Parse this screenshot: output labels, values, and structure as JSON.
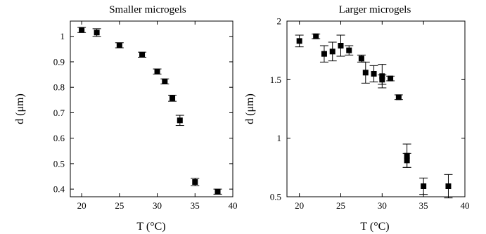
{
  "chart_data": [
    {
      "type": "scatter",
      "title": "Smaller microgels",
      "xlabel": "T (°C)",
      "ylabel": "d (μm)",
      "xlim": [
        18.5,
        40
      ],
      "ylim": [
        0.37,
        1.06
      ],
      "xticks": [
        20,
        25,
        30,
        35,
        40
      ],
      "yticks": [
        0.4,
        0.5,
        0.6,
        0.7,
        0.8,
        0.9,
        1
      ],
      "grid": false,
      "series": [
        {
          "marker": "square",
          "color": "#000000",
          "points": [
            {
              "x": 20,
              "y": 1.025,
              "err": 0.01
            },
            {
              "x": 22,
              "y": 1.015,
              "err": 0.015
            },
            {
              "x": 25,
              "y": 0.965,
              "err": 0.01
            },
            {
              "x": 28,
              "y": 0.928,
              "err": 0.01
            },
            {
              "x": 30,
              "y": 0.862,
              "err": 0.01
            },
            {
              "x": 31,
              "y": 0.823,
              "err": 0.01
            },
            {
              "x": 32,
              "y": 0.757,
              "err": 0.012
            },
            {
              "x": 33,
              "y": 0.67,
              "err": 0.02
            },
            {
              "x": 35,
              "y": 0.428,
              "err": 0.015
            },
            {
              "x": 38,
              "y": 0.39,
              "err": 0.01
            }
          ]
        }
      ]
    },
    {
      "type": "scatter",
      "title": "Larger microgels",
      "xlabel": "T (°C)",
      "ylabel": "d (μm)",
      "xlim": [
        18.5,
        40
      ],
      "ylim": [
        0.5,
        2
      ],
      "xticks": [
        20,
        25,
        30,
        35,
        40
      ],
      "yticks": [
        0.5,
        1,
        1.5,
        2
      ],
      "grid": false,
      "series": [
        {
          "marker": "square",
          "color": "#000000",
          "points": [
            {
              "x": 20,
              "y": 1.83,
              "err": 0.05
            },
            {
              "x": 22,
              "y": 1.87,
              "err": 0.02
            },
            {
              "x": 23,
              "y": 1.72,
              "err": 0.07
            },
            {
              "x": 24,
              "y": 1.74,
              "err": 0.08
            },
            {
              "x": 25,
              "y": 1.79,
              "err": 0.09
            },
            {
              "x": 26,
              "y": 1.75,
              "err": 0.04
            },
            {
              "x": 27.5,
              "y": 1.68,
              "err": 0.03
            },
            {
              "x": 28,
              "y": 1.56,
              "err": 0.09
            },
            {
              "x": 29,
              "y": 1.55,
              "err": 0.07
            },
            {
              "x": 30,
              "y": 1.53,
              "err": 0.1
            },
            {
              "x": 30,
              "y": 1.5,
              "err": 0.04
            },
            {
              "x": 31,
              "y": 1.51,
              "err": 0.02
            },
            {
              "x": 32,
              "y": 1.35,
              "err": 0.02
            },
            {
              "x": 33,
              "y": 0.85,
              "err": 0.1
            },
            {
              "x": 33,
              "y": 0.81,
              "err": 0.06
            },
            {
              "x": 35,
              "y": 0.59,
              "err": 0.07
            },
            {
              "x": 38,
              "y": 0.59,
              "err": 0.1
            }
          ]
        }
      ]
    }
  ]
}
